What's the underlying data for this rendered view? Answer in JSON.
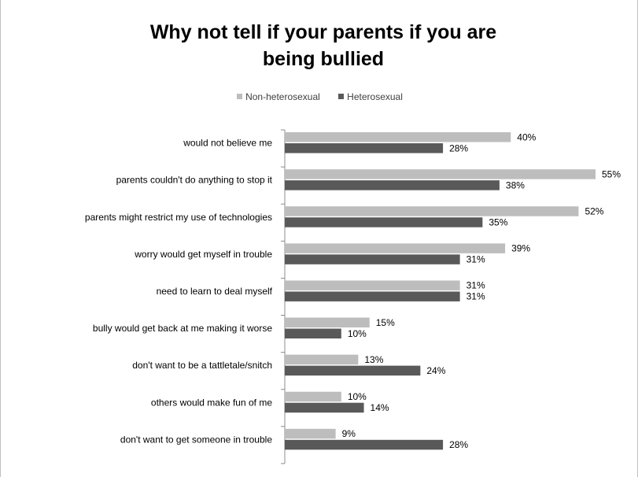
{
  "chart_data": {
    "type": "bar",
    "orientation": "horizontal",
    "title": "Why not tell if your parents if you are being bullied",
    "categories": [
      "would not believe me",
      "parents couldn't do anything to stop it",
      "parents might restrict my use of technologies",
      "worry would get myself in trouble",
      "need to learn to deal myself",
      "bully would get back at me making it worse",
      "don't want to be a tattletale/snitch",
      "others would make fun of me",
      "don't want to get someone in trouble"
    ],
    "series": [
      {
        "name": "Non-heterosexual",
        "values": [
          40,
          55,
          52,
          39,
          31,
          15,
          13,
          10,
          9
        ],
        "labels": [
          "40%",
          "55%",
          "52%",
          "39%",
          "31%",
          "15%",
          "13%",
          "10%",
          "9%"
        ],
        "color": "#bdbdbd"
      },
      {
        "name": "Heterosexual",
        "values": [
          28,
          38,
          35,
          31,
          31,
          10,
          24,
          14,
          28
        ],
        "labels": [
          "28%",
          "38%",
          "35%",
          "31%",
          "31%",
          "10%",
          "24%",
          "14%",
          "28%"
        ],
        "color": "#595959"
      }
    ],
    "value_unit": "%",
    "xlim": [
      0,
      60
    ],
    "grid": false,
    "legend_position": "top"
  }
}
